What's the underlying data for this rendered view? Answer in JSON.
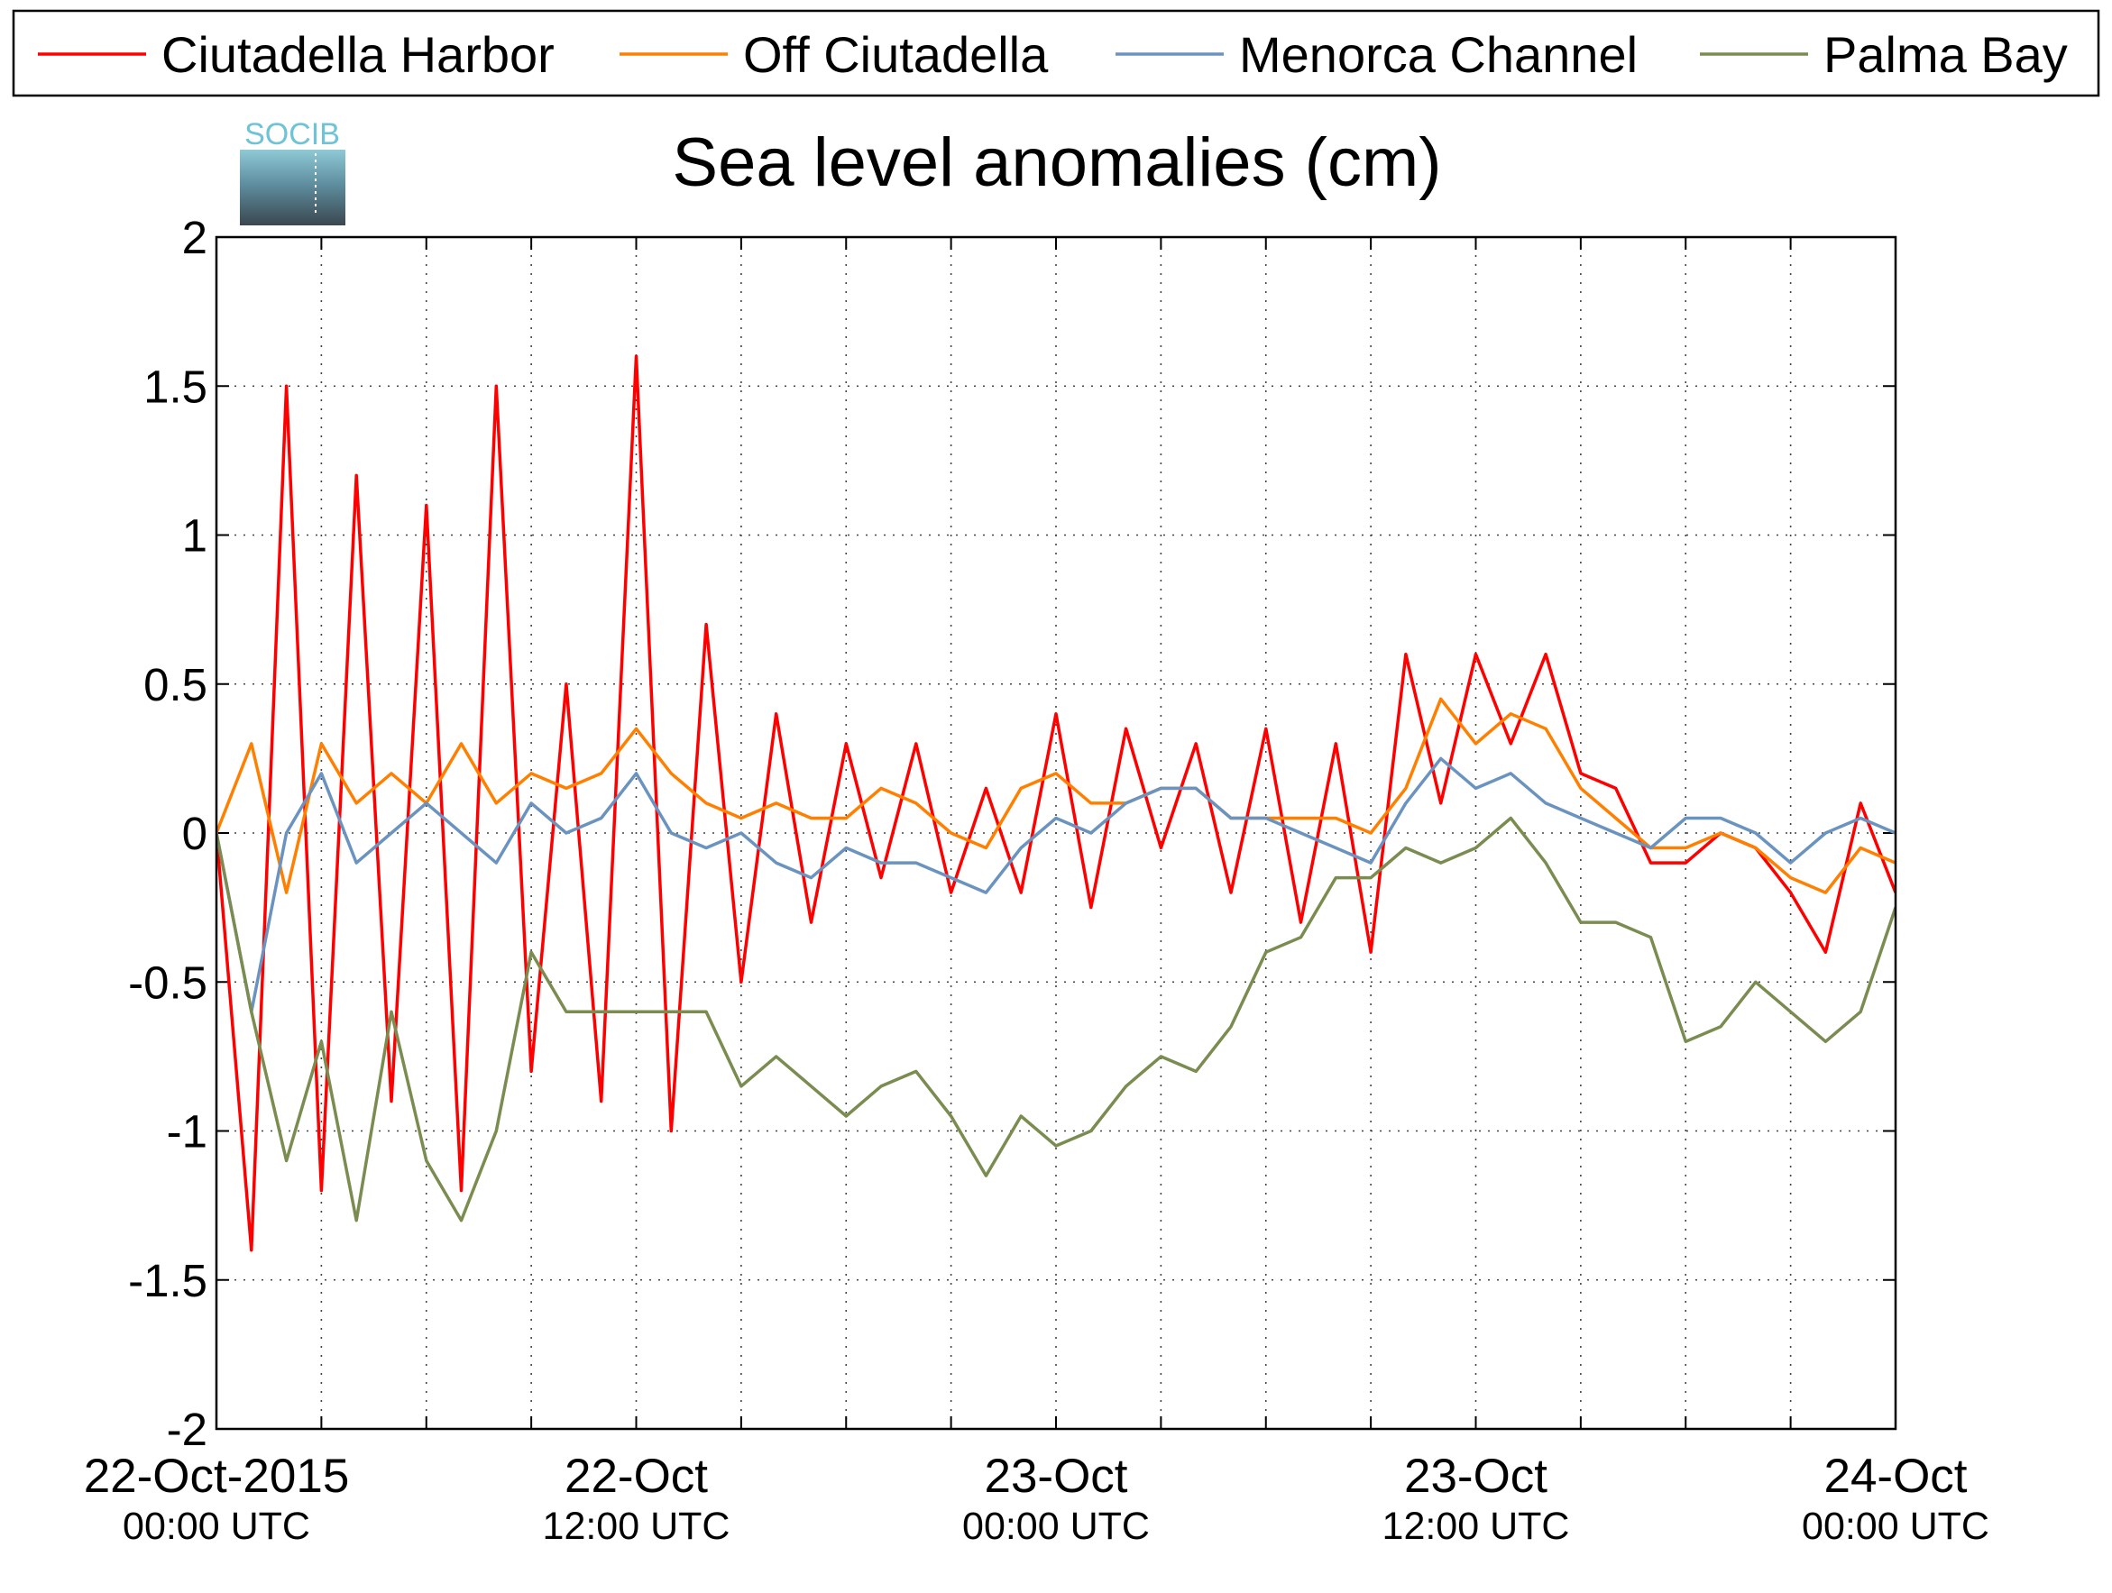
{
  "chart_data": {
    "type": "line",
    "title": "Sea level anomalies (cm)",
    "logo": "SOCIB",
    "x": [
      "2015-10-22T00:00",
      "2015-10-22T01:00",
      "2015-10-22T02:00",
      "2015-10-22T03:00",
      "2015-10-22T04:00",
      "2015-10-22T05:00",
      "2015-10-22T06:00",
      "2015-10-22T07:00",
      "2015-10-22T08:00",
      "2015-10-22T09:00",
      "2015-10-22T10:00",
      "2015-10-22T11:00",
      "2015-10-22T12:00",
      "2015-10-22T13:00",
      "2015-10-22T14:00",
      "2015-10-22T15:00",
      "2015-10-22T16:00",
      "2015-10-22T17:00",
      "2015-10-22T18:00",
      "2015-10-22T19:00",
      "2015-10-22T20:00",
      "2015-10-22T21:00",
      "2015-10-22T22:00",
      "2015-10-22T23:00",
      "2015-10-23T00:00",
      "2015-10-23T01:00",
      "2015-10-23T02:00",
      "2015-10-23T03:00",
      "2015-10-23T04:00",
      "2015-10-23T05:00",
      "2015-10-23T06:00",
      "2015-10-23T07:00",
      "2015-10-23T08:00",
      "2015-10-23T09:00",
      "2015-10-23T10:00",
      "2015-10-23T11:00",
      "2015-10-23T12:00",
      "2015-10-23T13:00",
      "2015-10-23T14:00",
      "2015-10-23T15:00",
      "2015-10-23T16:00",
      "2015-10-23T17:00",
      "2015-10-23T18:00",
      "2015-10-23T19:00",
      "2015-10-23T20:00",
      "2015-10-23T21:00",
      "2015-10-23T22:00",
      "2015-10-23T23:00",
      "2015-10-24T00:00"
    ],
    "series": [
      {
        "name": "Ciutadella Harbor",
        "color": "#ff0000",
        "values": [
          0,
          -1.4,
          1.5,
          -1.2,
          1.2,
          -0.9,
          1.1,
          -1.2,
          1.5,
          -0.8,
          0.5,
          -0.9,
          1.6,
          -1.0,
          0.7,
          -0.5,
          0.4,
          -0.3,
          0.3,
          -0.15,
          0.3,
          -0.2,
          0.15,
          -0.2,
          0.4,
          -0.25,
          0.35,
          -0.05,
          0.3,
          -0.2,
          0.35,
          -0.3,
          0.3,
          -0.4,
          0.6,
          0.1,
          0.6,
          0.3,
          0.6,
          0.2,
          0.15,
          -0.1,
          -0.1,
          0,
          -0.05,
          -0.2,
          -0.4,
          0.1,
          -0.2
        ]
      },
      {
        "name": "Off Ciutadella",
        "color": "#ff8000",
        "values": [
          0,
          0.3,
          -0.2,
          0.3,
          0.1,
          0.2,
          0.1,
          0.3,
          0.1,
          0.2,
          0.15,
          0.2,
          0.35,
          0.2,
          0.1,
          0.05,
          0.1,
          0.05,
          0.05,
          0.15,
          0.1,
          0,
          -0.05,
          0.15,
          0.2,
          0.1,
          0.1,
          0.15,
          0.15,
          0.05,
          0.05,
          0.05,
          0.05,
          0,
          0.15,
          0.45,
          0.3,
          0.4,
          0.35,
          0.15,
          0.05,
          -0.05,
          -0.05,
          0,
          -0.05,
          -0.15,
          -0.2,
          -0.05,
          -0.1
        ]
      },
      {
        "name": "Menorca Channel",
        "color": "#6b93c0",
        "values": [
          0,
          -0.6,
          0,
          0.2,
          -0.1,
          0,
          0.1,
          0,
          -0.1,
          0.1,
          0,
          0.05,
          0.2,
          0,
          -0.05,
          0,
          -0.1,
          -0.15,
          -0.05,
          -0.1,
          -0.1,
          -0.15,
          -0.2,
          -0.05,
          0.05,
          0,
          0.1,
          0.15,
          0.15,
          0.05,
          0.05,
          0,
          -0.05,
          -0.1,
          0.1,
          0.25,
          0.15,
          0.2,
          0.1,
          0.05,
          0,
          -0.05,
          0.05,
          0.05,
          0,
          -0.1,
          0,
          0.05,
          0
        ]
      },
      {
        "name": "Palma Bay",
        "color": "#7a8c4f",
        "values": [
          0,
          -0.6,
          -1.1,
          -0.7,
          -1.3,
          -0.6,
          -1.1,
          -1.3,
          -1.0,
          -0.4,
          -0.6,
          -0.6,
          -0.6,
          -0.6,
          -0.6,
          -0.85,
          -0.75,
          -0.85,
          -0.95,
          -0.85,
          -0.8,
          -0.95,
          -1.15,
          -0.95,
          -1.05,
          -1.0,
          -0.85,
          -0.75,
          -0.8,
          -0.65,
          -0.4,
          -0.35,
          -0.15,
          -0.15,
          -0.05,
          -0.1,
          -0.05,
          0.05,
          -0.1,
          -0.3,
          -0.3,
          -0.35,
          -0.7,
          -0.65,
          -0.5,
          -0.6,
          -0.7,
          -0.6,
          -0.25
        ]
      }
    ],
    "xlim": [
      "2015-10-22T00:00",
      "2015-10-24T00:00"
    ],
    "xticks": [
      {
        "value": "2015-10-22T00:00",
        "label": [
          "22-Oct-2015",
          "00:00 UTC"
        ]
      },
      {
        "value": "2015-10-22T12:00",
        "label": [
          "22-Oct",
          "12:00 UTC"
        ]
      },
      {
        "value": "2015-10-23T00:00",
        "label": [
          "23-Oct",
          "00:00 UTC"
        ]
      },
      {
        "value": "2015-10-23T12:00",
        "label": [
          "23-Oct",
          "12:00 UTC"
        ]
      },
      {
        "value": "2015-10-24T00:00",
        "label": [
          "24-Oct",
          "00:00 UTC"
        ]
      }
    ],
    "xminorticks": [
      "2015-10-22T03:00",
      "2015-10-22T06:00",
      "2015-10-22T09:00",
      "2015-10-22T15:00",
      "2015-10-22T18:00",
      "2015-10-22T21:00",
      "2015-10-23T03:00",
      "2015-10-23T06:00",
      "2015-10-23T09:00",
      "2015-10-23T15:00",
      "2015-10-23T18:00",
      "2015-10-23T21:00"
    ],
    "ylim": [
      -2,
      2
    ],
    "yticks": [
      -2,
      -1.5,
      -1,
      -0.5,
      0,
      0.5,
      1,
      1.5,
      2
    ],
    "grid": true,
    "legend": "top"
  }
}
